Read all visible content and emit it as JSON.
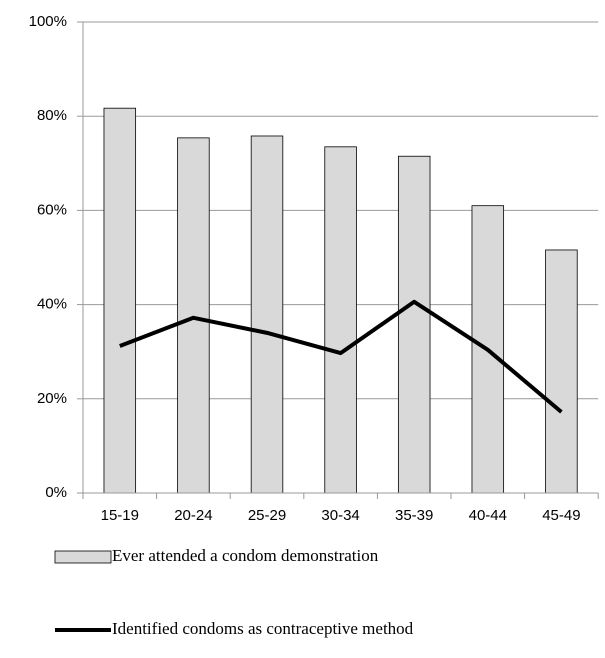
{
  "chart_data": {
    "type": "bar",
    "categories": [
      "15-19",
      "20-24",
      "25-29",
      "30-34",
      "35-39",
      "40-44",
      "45-49"
    ],
    "series": [
      {
        "name": "Ever attended a condom demonstration",
        "type": "bar",
        "color": "#d9d9d9",
        "values": [
          81.7,
          75.4,
          75.8,
          73.5,
          71.5,
          61,
          51.6
        ]
      },
      {
        "name": "Identified condoms as contraceptive method",
        "type": "line",
        "color": "#000000",
        "values": [
          31.2,
          37.2,
          34.0,
          29.7,
          40.6,
          30.4,
          17.2
        ]
      }
    ],
    "ylim": [
      0,
      100
    ],
    "yticks": [
      {
        "value": 0,
        "label": "0%"
      },
      {
        "value": 20,
        "label": "20%"
      },
      {
        "value": 40,
        "label": "40%"
      },
      {
        "value": 60,
        "label": "60%"
      },
      {
        "value": 80,
        "label": "80%"
      },
      {
        "value": 100,
        "label": "100%"
      }
    ],
    "grid": true
  }
}
